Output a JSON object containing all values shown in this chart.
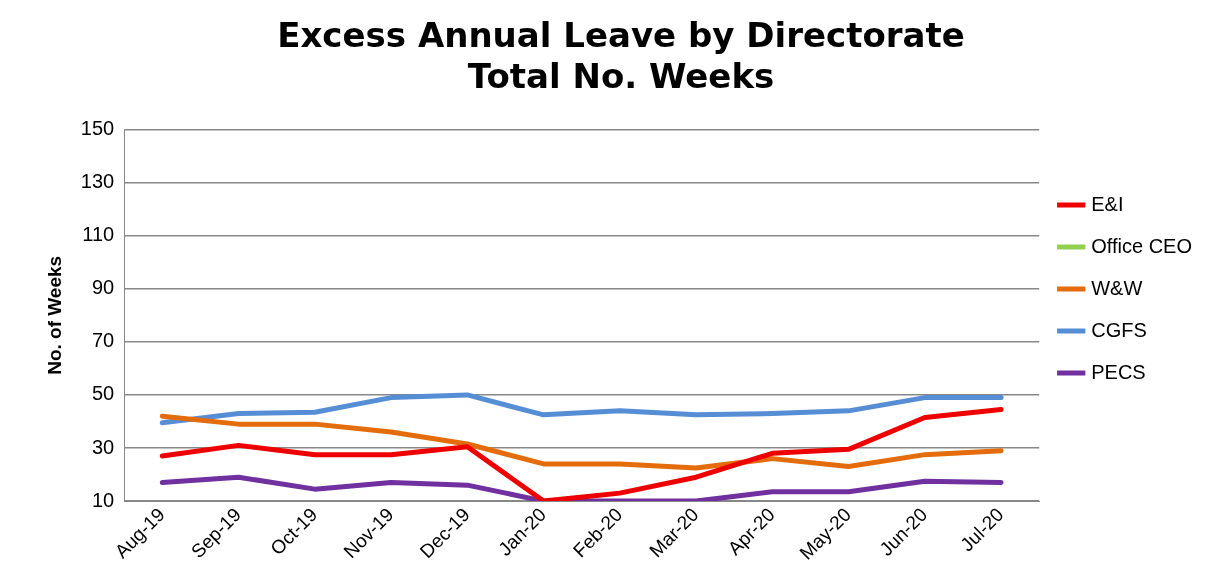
{
  "chart_data": {
    "type": "line",
    "title": "Excess Annual Leave by Directorate",
    "subtitle": "Total No. Weeks",
    "ylabel": "No. of Weeks",
    "categories": [
      "Aug-19",
      "Sep-19",
      "Oct-19",
      "Nov-19",
      "Dec-19",
      "Jan-20",
      "Feb-20",
      "Mar-20",
      "Apr-20",
      "May-20",
      "Jun-20",
      "Jul-20"
    ],
    "series": [
      {
        "name": "E&I",
        "color": "#ee0000",
        "values": [
          27,
          31,
          27.5,
          27.5,
          30.5,
          10,
          13,
          19,
          28,
          29.5,
          41.5,
          44.5
        ]
      },
      {
        "name": "Office CEO",
        "color": "#92d050",
        "values": [
          null,
          null,
          null,
          null,
          null,
          null,
          null,
          null,
          null,
          null,
          null,
          null
        ]
      },
      {
        "name": "W&W",
        "color": "#e46c0a",
        "values": [
          42,
          39,
          39,
          36,
          31.5,
          24,
          24,
          22.5,
          26,
          23,
          27.5,
          29
        ]
      },
      {
        "name": "CGFS",
        "color": "#558ed5",
        "values": [
          39.5,
          43,
          43.5,
          49,
          50,
          42.5,
          44,
          42.5,
          43,
          44,
          49,
          49
        ]
      },
      {
        "name": "PECS",
        "color": "#7030a0",
        "values": [
          17,
          19,
          14.5,
          17,
          16,
          10,
          10,
          10,
          13.5,
          13.5,
          17.5,
          17
        ]
      }
    ],
    "ylim": [
      10,
      150
    ],
    "yticks": [
      10,
      30,
      50,
      70,
      90,
      110,
      130,
      150
    ],
    "grid": "y",
    "legend": "right",
    "marker": "none",
    "line_style": "solid"
  }
}
